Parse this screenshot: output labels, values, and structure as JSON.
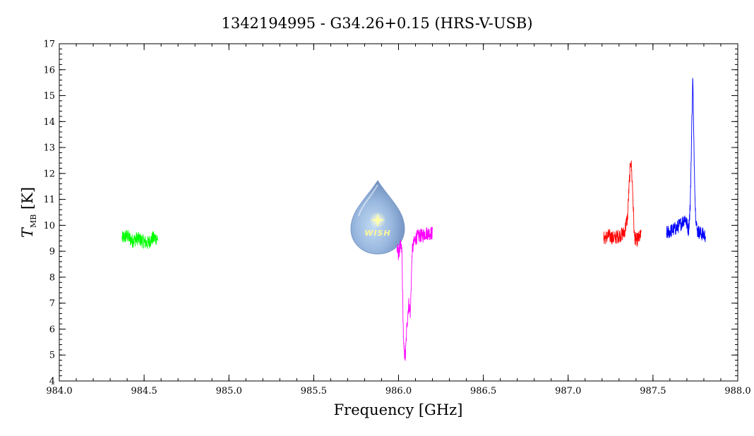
{
  "chart_data": {
    "type": "line",
    "title": "1342194995 - G34.26+0.15 (HRS-V-USB)",
    "xlabel": "Frequency [GHz]",
    "ylabel_main": "T",
    "ylabel_sub": "MB",
    "ylabel_unit": " [K]",
    "xlim": [
      984.0,
      988.0
    ],
    "ylim": [
      4,
      17
    ],
    "xticks": [
      "984.0",
      "984.5",
      "985.0",
      "985.5",
      "986.0",
      "986.5",
      "987.0",
      "987.5",
      "988.0"
    ],
    "yticks": [
      "4",
      "5",
      "6",
      "7",
      "8",
      "9",
      "10",
      "11",
      "12",
      "13",
      "14",
      "15",
      "16",
      "17"
    ],
    "grid": false,
    "series": [
      {
        "color": "#00ff00",
        "x": [
          984.37,
          984.4,
          984.43,
          984.46,
          984.49,
          984.52,
          984.55,
          984.58
        ],
        "y": [
          9.5,
          9.6,
          9.4,
          9.5,
          9.4,
          9.3,
          9.5,
          9.5
        ]
      },
      {
        "color": "#ff00ff",
        "x": [
          985.99,
          986.0,
          986.01,
          986.02,
          986.025,
          986.03,
          986.04,
          986.05,
          986.06,
          986.07,
          986.08,
          986.09,
          986.1,
          986.12,
          986.14,
          986.16,
          986.18,
          986.2
        ],
        "y": [
          9.1,
          8.9,
          9.2,
          9.0,
          7.0,
          5.3,
          4.9,
          6.2,
          7.0,
          6.6,
          9.0,
          9.3,
          9.5,
          9.6,
          9.6,
          9.7,
          9.7,
          9.7
        ]
      },
      {
        "color": "#ff0000",
        "x": [
          987.21,
          987.24,
          987.27,
          987.3,
          987.33,
          987.35,
          987.36,
          987.37,
          987.38,
          987.39,
          987.4,
          987.43
        ],
        "y": [
          9.5,
          9.6,
          9.5,
          9.6,
          9.7,
          10.3,
          11.6,
          12.6,
          11.4,
          9.6,
          9.4,
          9.6
        ]
      },
      {
        "color": "#0000ff",
        "x": [
          987.58,
          987.61,
          987.64,
          987.67,
          987.69,
          987.71,
          987.72,
          987.73,
          987.735,
          987.74,
          987.75,
          987.76,
          987.78,
          987.81
        ],
        "y": [
          9.7,
          9.8,
          9.9,
          10.1,
          10.3,
          9.8,
          10.8,
          14.2,
          15.8,
          13.5,
          10.6,
          9.8,
          9.7,
          9.6
        ]
      }
    ]
  },
  "logo": {
    "text": "WISH"
  }
}
